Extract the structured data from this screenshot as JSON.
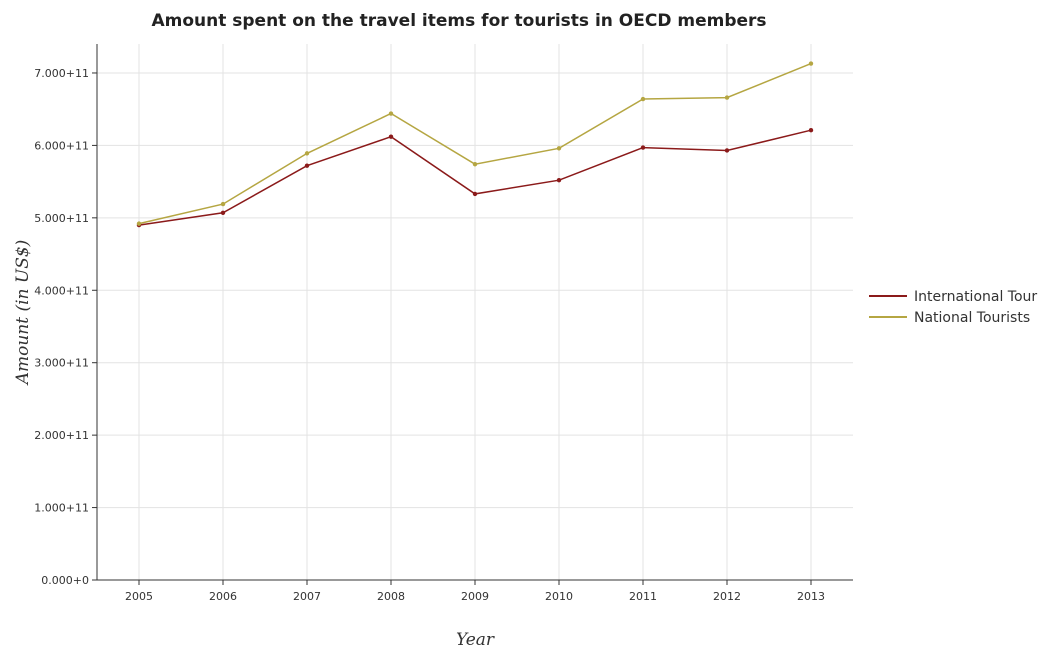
{
  "chart_data": {
    "type": "line",
    "title": "Amount spent on the travel items for tourists in OECD members",
    "xlabel": "Year",
    "ylabel": "Amount (in US$)",
    "categories": [
      "2005",
      "2006",
      "2007",
      "2008",
      "2009",
      "2010",
      "2011",
      "2012",
      "2013"
    ],
    "ylim": [
      0,
      740000000000
    ],
    "yticks": [
      0,
      100000000000,
      200000000000,
      300000000000,
      400000000000,
      500000000000,
      600000000000,
      700000000000
    ],
    "ytick_labels": [
      "0.000+0",
      "1.000+11",
      "2.000+11",
      "3.000+11",
      "4.000+11",
      "5.000+11",
      "6.000+11",
      "7.000+11"
    ],
    "grid": true,
    "legend_position": "right",
    "series": [
      {
        "name": "International Tourists",
        "color": "#8b1a1a",
        "values": [
          490000000000,
          507000000000,
          572000000000,
          612000000000,
          533000000000,
          552000000000,
          597000000000,
          593000000000,
          621000000000
        ]
      },
      {
        "name": "National Tourists",
        "color": "#b5a642",
        "values": [
          492000000000,
          519000000000,
          589000000000,
          644000000000,
          574000000000,
          596000000000,
          664000000000,
          666000000000,
          713000000000
        ]
      }
    ]
  }
}
